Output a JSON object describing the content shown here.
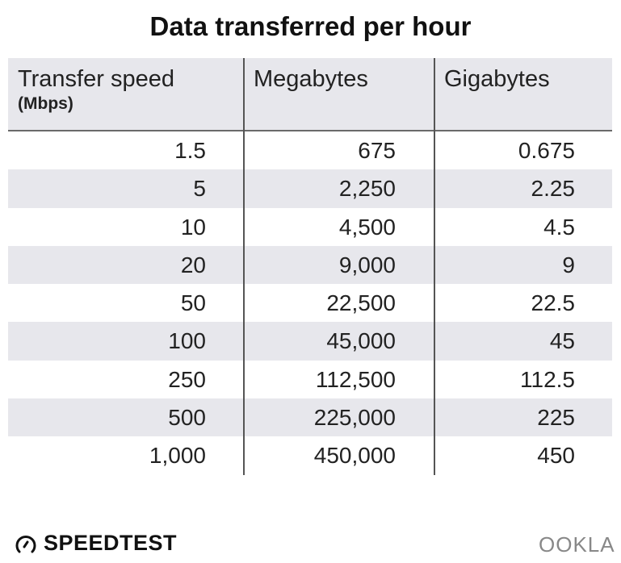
{
  "title": "Data transferred per hour",
  "chart_data": {
    "type": "table",
    "title": "Data transferred per hour",
    "columns": [
      {
        "label": "Transfer speed",
        "sublabel": "(Mbps)"
      },
      {
        "label": "Megabytes"
      },
      {
        "label": "Gigabytes"
      }
    ],
    "rows": [
      [
        "1.5",
        "675",
        "0.675"
      ],
      [
        "5",
        "2,250",
        "2.25"
      ],
      [
        "10",
        "4,500",
        "4.5"
      ],
      [
        "20",
        "9,000",
        "9"
      ],
      [
        "50",
        "22,500",
        "22.5"
      ],
      [
        "100",
        "45,000",
        "45"
      ],
      [
        "250",
        "112,500",
        "112.5"
      ],
      [
        "500",
        "225,000",
        "225"
      ],
      [
        "1,000",
        "450,000",
        "450"
      ]
    ]
  },
  "colors": {
    "row_alt": "#e7e7ec",
    "header_bg": "#e7e7ec",
    "divider": "#555555"
  },
  "footer": {
    "left_logo": "SPEEDTEST",
    "right_logo": "OOKLA"
  }
}
